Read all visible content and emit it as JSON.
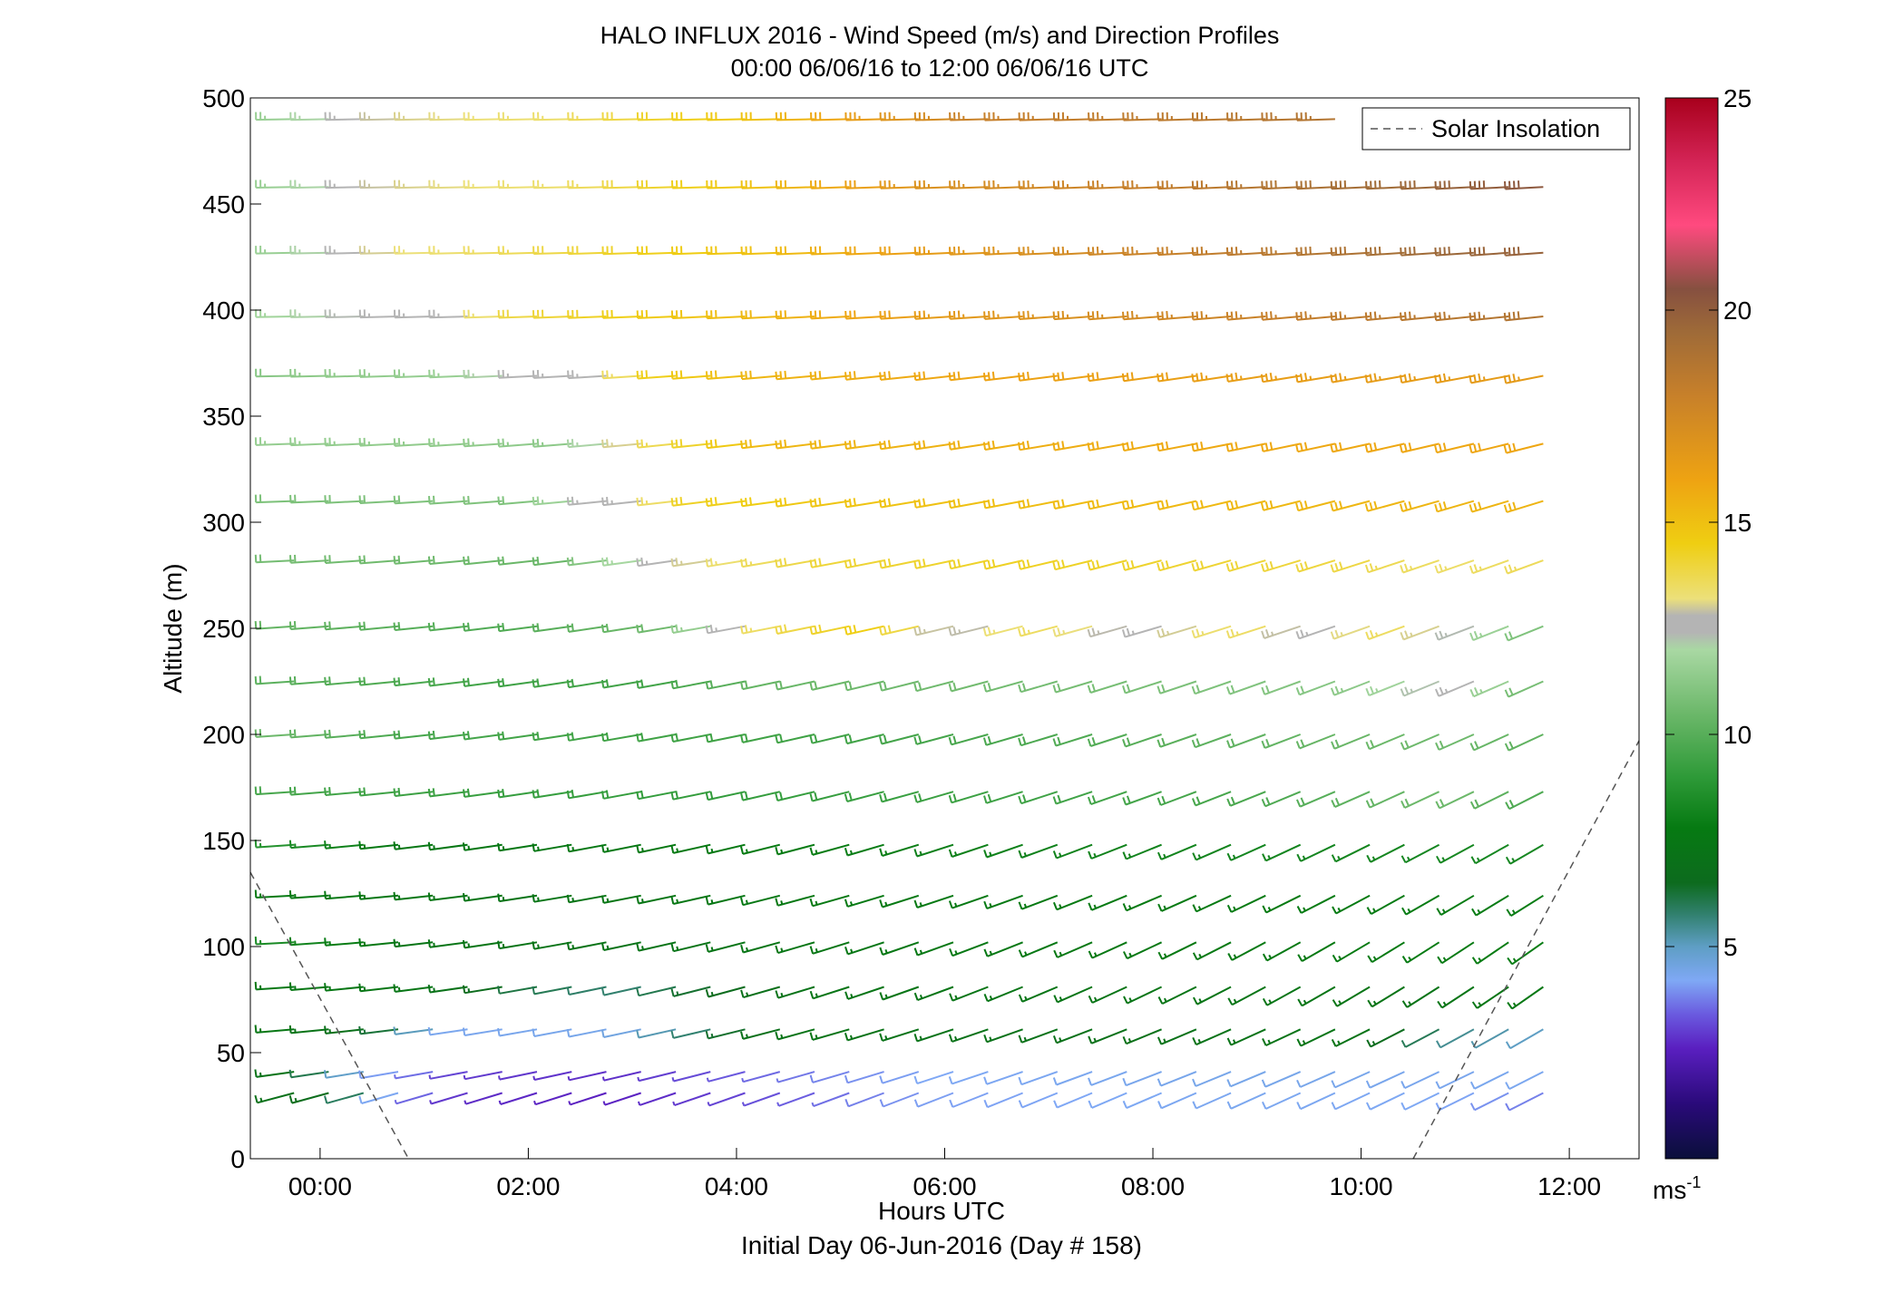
{
  "chart_data": {
    "type": "wind_barbs",
    "title": "HALO INFLUX 2016 - Wind Speed (m/s) and Direction Profiles",
    "subtitle": "00:00 06/06/16 to 12:00 06/06/16  UTC",
    "xlabel": "Hours UTC",
    "xlabel2": "Initial Day 06-Jun-2016 (Day # 158)",
    "ylabel": "Altitude (m)",
    "xlim_hours": [
      -0.67,
      12.67
    ],
    "ylim": [
      0,
      500
    ],
    "x_ticks": [
      {
        "hour": 0,
        "label": "00:00"
      },
      {
        "hour": 2,
        "label": "02:00"
      },
      {
        "hour": 4,
        "label": "04:00"
      },
      {
        "hour": 6,
        "label": "06:00"
      },
      {
        "hour": 8,
        "label": "08:00"
      },
      {
        "hour": 10,
        "label": "10:00"
      },
      {
        "hour": 12,
        "label": "12:00"
      }
    ],
    "y_ticks": [
      0,
      50,
      100,
      150,
      200,
      250,
      300,
      350,
      400,
      450,
      500
    ],
    "legend": {
      "label": "Solar Insolation",
      "style": "dashed",
      "color": "#555555",
      "placement": "top-right"
    },
    "colorbar": {
      "unit_label": "ms",
      "unit_exponent": "-1",
      "range": [
        0,
        25
      ],
      "ticks": [
        5,
        10,
        15,
        20,
        25
      ],
      "stops": [
        {
          "v": 0,
          "c": "#0a0f3a"
        },
        {
          "v": 1.3,
          "c": "#2a0a7a"
        },
        {
          "v": 2.6,
          "c": "#5a1fc0"
        },
        {
          "v": 3.4,
          "c": "#6a5adf"
        },
        {
          "v": 4.2,
          "c": "#7fa8f5"
        },
        {
          "v": 5.0,
          "c": "#5e9ec4"
        },
        {
          "v": 5.8,
          "c": "#2f7f6a"
        },
        {
          "v": 6.5,
          "c": "#0d6b1e"
        },
        {
          "v": 7.8,
          "c": "#067a12"
        },
        {
          "v": 9.0,
          "c": "#2e9a38"
        },
        {
          "v": 10.5,
          "c": "#6cb86a"
        },
        {
          "v": 12.0,
          "c": "#a9d8a3"
        },
        {
          "v": 12.4,
          "c": "#b4b4b4"
        },
        {
          "v": 12.8,
          "c": "#b4b4b4"
        },
        {
          "v": 13.2,
          "c": "#ece07a"
        },
        {
          "v": 14.5,
          "c": "#efce12"
        },
        {
          "v": 16.0,
          "c": "#eea312"
        },
        {
          "v": 18.0,
          "c": "#c7802a"
        },
        {
          "v": 19.5,
          "c": "#9e6a38"
        },
        {
          "v": 20.5,
          "c": "#865040"
        },
        {
          "v": 22.0,
          "c": "#ff4a7f"
        },
        {
          "v": 23.5,
          "c": "#d42456"
        },
        {
          "v": 25.0,
          "c": "#a8001c"
        }
      ]
    },
    "time_hours": [
      -0.25,
      0.083,
      0.417,
      0.75,
      1.083,
      1.417,
      1.75,
      2.083,
      2.417,
      2.75,
      3.083,
      3.417,
      3.75,
      4.083,
      4.417,
      4.75,
      5.083,
      5.417,
      5.75,
      6.083,
      6.417,
      6.75,
      7.083,
      7.417,
      7.75,
      8.083,
      8.417,
      8.75,
      9.083,
      9.417,
      9.75,
      10.083,
      10.417,
      10.75,
      11.083,
      11.417,
      11.75
    ],
    "altitudes_m": [
      31,
      41,
      61,
      81,
      102,
      124,
      148,
      173,
      200,
      225,
      251,
      282,
      310,
      337,
      369,
      397,
      427,
      458,
      490
    ],
    "direction_profile_deg": [
      {
        "alt": 31,
        "start": 255,
        "end": 243
      },
      {
        "alt": 41,
        "start": 262,
        "end": 243
      },
      {
        "alt": 61,
        "start": 265,
        "end": 240
      },
      {
        "alt": 81,
        "start": 266,
        "end": 235
      },
      {
        "alt": 102,
        "start": 267,
        "end": 235
      },
      {
        "alt": 124,
        "start": 267,
        "end": 238
      },
      {
        "alt": 148,
        "start": 266,
        "end": 240
      },
      {
        "alt": 173,
        "start": 266,
        "end": 243
      },
      {
        "alt": 200,
        "start": 266,
        "end": 245
      },
      {
        "alt": 225,
        "start": 266,
        "end": 246
      },
      {
        "alt": 251,
        "start": 266,
        "end": 248
      },
      {
        "alt": 282,
        "start": 267,
        "end": 250
      },
      {
        "alt": 310,
        "start": 268,
        "end": 253
      },
      {
        "alt": 337,
        "start": 268,
        "end": 256
      },
      {
        "alt": 369,
        "start": 269,
        "end": 259
      },
      {
        "alt": 397,
        "start": 269,
        "end": 264
      },
      {
        "alt": 427,
        "start": 269,
        "end": 266
      },
      {
        "alt": 458,
        "start": 269,
        "end": 267
      },
      {
        "alt": 490,
        "start": 269,
        "end": 268
      }
    ],
    "speed_profile_ms": [
      {
        "alt": 31,
        "points": [
          [
            -0.25,
            7.0
          ],
          [
            0.3,
            6.5
          ],
          [
            0.8,
            4.0
          ],
          [
            1.5,
            2.8
          ],
          [
            3.0,
            2.6
          ],
          [
            4.5,
            3.3
          ],
          [
            6.0,
            4.1
          ],
          [
            9.0,
            4.3
          ],
          [
            11.0,
            4.2
          ],
          [
            11.75,
            3.8
          ]
        ]
      },
      {
        "alt": 41,
        "points": [
          [
            -0.25,
            7.2
          ],
          [
            0.6,
            4.3
          ],
          [
            1.5,
            3.0
          ],
          [
            3.0,
            2.8
          ],
          [
            4.5,
            3.6
          ],
          [
            6.0,
            4.2
          ],
          [
            9.0,
            4.4
          ],
          [
            11.75,
            4.3
          ]
        ]
      },
      {
        "alt": 61,
        "points": [
          [
            -0.25,
            7.5
          ],
          [
            0.6,
            6.8
          ],
          [
            1.3,
            4.3
          ],
          [
            3.0,
            4.4
          ],
          [
            4.6,
            7.3
          ],
          [
            8.0,
            7.0
          ],
          [
            10.0,
            7.4
          ],
          [
            11.0,
            5.5
          ],
          [
            11.75,
            5.0
          ]
        ]
      },
      {
        "alt": 81,
        "points": [
          [
            -0.25,
            7.6
          ],
          [
            1.2,
            7.4
          ],
          [
            2.0,
            6.2
          ],
          [
            3.0,
            5.7
          ],
          [
            5.0,
            7.4
          ],
          [
            8.0,
            7.4
          ],
          [
            11.0,
            7.3
          ],
          [
            11.75,
            7.6
          ]
        ]
      },
      {
        "alt": 102,
        "points": [
          [
            -0.25,
            8.4
          ],
          [
            1.0,
            7.4
          ],
          [
            3.0,
            7.2
          ],
          [
            6.0,
            7.6
          ],
          [
            9.0,
            7.7
          ],
          [
            11.75,
            7.9
          ]
        ]
      },
      {
        "alt": 124,
        "points": [
          [
            -0.25,
            7.8
          ],
          [
            2.0,
            7.3
          ],
          [
            5.0,
            7.7
          ],
          [
            9.0,
            7.8
          ],
          [
            11.75,
            7.9
          ]
        ]
      },
      {
        "alt": 148,
        "points": [
          [
            -0.25,
            8.7
          ],
          [
            1.0,
            7.5
          ],
          [
            3.0,
            7.6
          ],
          [
            6.0,
            8.0
          ],
          [
            9.0,
            8.2
          ],
          [
            11.75,
            8.3
          ]
        ]
      },
      {
        "alt": 173,
        "points": [
          [
            -0.25,
            9.6
          ],
          [
            2.0,
            9.2
          ],
          [
            4.0,
            9.1
          ],
          [
            6.0,
            9.3
          ],
          [
            9.0,
            9.6
          ],
          [
            11.0,
            10.6
          ],
          [
            11.75,
            9.8
          ]
        ]
      },
      {
        "alt": 200,
        "points": [
          [
            -0.25,
            10.5
          ],
          [
            1.0,
            9.6
          ],
          [
            3.0,
            9.4
          ],
          [
            5.0,
            9.4
          ],
          [
            7.0,
            9.7
          ],
          [
            9.0,
            10.2
          ],
          [
            11.0,
            10.6
          ],
          [
            11.75,
            10.2
          ]
        ]
      },
      {
        "alt": 225,
        "points": [
          [
            -0.25,
            10.1
          ],
          [
            2.0,
            9.4
          ],
          [
            3.5,
            9.5
          ],
          [
            4.5,
            10.4
          ],
          [
            6.0,
            10.6
          ],
          [
            8.0,
            10.8
          ],
          [
            10.0,
            11.2
          ],
          [
            11.0,
            12.6
          ],
          [
            11.75,
            10.8
          ]
        ]
      },
      {
        "alt": 251,
        "points": [
          [
            -0.25,
            10.3
          ],
          [
            2.0,
            9.8
          ],
          [
            3.5,
            10.6
          ],
          [
            4.3,
            13.4
          ],
          [
            5.5,
            14.6
          ],
          [
            6.2,
            12.6
          ],
          [
            7.0,
            13.6
          ],
          [
            8.0,
            12.6
          ],
          [
            9.0,
            13.6
          ],
          [
            9.6,
            12.6
          ],
          [
            10.5,
            13.6
          ],
          [
            11.0,
            12.5
          ],
          [
            11.75,
            11.0
          ]
        ]
      },
      {
        "alt": 282,
        "points": [
          [
            -0.25,
            10.7
          ],
          [
            2.5,
            10.4
          ],
          [
            3.3,
            12.5
          ],
          [
            4.0,
            13.3
          ],
          [
            5.0,
            14.0
          ],
          [
            7.0,
            14.3
          ],
          [
            10.0,
            13.9
          ],
          [
            11.0,
            13.4
          ],
          [
            11.75,
            13.6
          ]
        ]
      },
      {
        "alt": 310,
        "points": [
          [
            -0.25,
            10.9
          ],
          [
            2.2,
            11.0
          ],
          [
            2.7,
            12.5
          ],
          [
            3.2,
            12.6
          ],
          [
            3.6,
            14.2
          ],
          [
            5.0,
            14.8
          ],
          [
            8.0,
            15.2
          ],
          [
            11.75,
            15.4
          ]
        ]
      },
      {
        "alt": 337,
        "points": [
          [
            -0.25,
            11.5
          ],
          [
            2.5,
            11.3
          ],
          [
            3.2,
            13.4
          ],
          [
            4.5,
            15.3
          ],
          [
            7.0,
            15.6
          ],
          [
            9.0,
            15.8
          ],
          [
            11.75,
            15.9
          ]
        ]
      },
      {
        "alt": 369,
        "points": [
          [
            -0.25,
            11.2
          ],
          [
            1.5,
            11.6
          ],
          [
            2.0,
            12.6
          ],
          [
            2.8,
            12.6
          ],
          [
            3.3,
            14.3
          ],
          [
            4.5,
            15.4
          ],
          [
            7.0,
            16.1
          ],
          [
            9.0,
            16.3
          ],
          [
            11.75,
            16.5
          ]
        ]
      },
      {
        "alt": 397,
        "points": [
          [
            -0.25,
            11.8
          ],
          [
            0.6,
            12.5
          ],
          [
            1.3,
            12.6
          ],
          [
            2.0,
            13.8
          ],
          [
            4.5,
            15.3
          ],
          [
            6.0,
            16.4
          ],
          [
            8.0,
            17.4
          ],
          [
            10.0,
            18.3
          ],
          [
            11.75,
            18.8
          ]
        ]
      },
      {
        "alt": 427,
        "points": [
          [
            -0.25,
            11.6
          ],
          [
            0.8,
            13.1
          ],
          [
            2.0,
            13.6
          ],
          [
            4.5,
            15.0
          ],
          [
            6.0,
            16.4
          ],
          [
            8.0,
            17.8
          ],
          [
            10.0,
            18.9
          ],
          [
            11.0,
            19.6
          ],
          [
            11.75,
            19.8
          ]
        ]
      },
      {
        "alt": 458,
        "points": [
          [
            -0.25,
            11.6
          ],
          [
            0.8,
            13.0
          ],
          [
            2.5,
            13.4
          ],
          [
            4.5,
            15.0
          ],
          [
            6.0,
            17.0
          ],
          [
            8.0,
            18.0
          ],
          [
            10.0,
            19.2
          ],
          [
            11.75,
            20.2
          ]
        ]
      },
      {
        "alt": 490,
        "points": [
          [
            -0.25,
            11.6
          ],
          [
            0.8,
            13.0
          ],
          [
            2.5,
            13.4
          ],
          [
            4.5,
            15.0
          ],
          [
            5.5,
            16.5
          ],
          [
            6.5,
            18.0
          ],
          [
            8.0,
            18.3
          ],
          [
            10.0,
            18.8
          ]
        ]
      }
    ],
    "solar_insolation": [
      {
        "segment": "left",
        "points": [
          [
            -0.67,
            135
          ],
          [
            0.85,
            0
          ]
        ]
      },
      {
        "segment": "right",
        "points": [
          [
            10.5,
            0
          ],
          [
            12.67,
            197
          ]
        ]
      }
    ]
  }
}
